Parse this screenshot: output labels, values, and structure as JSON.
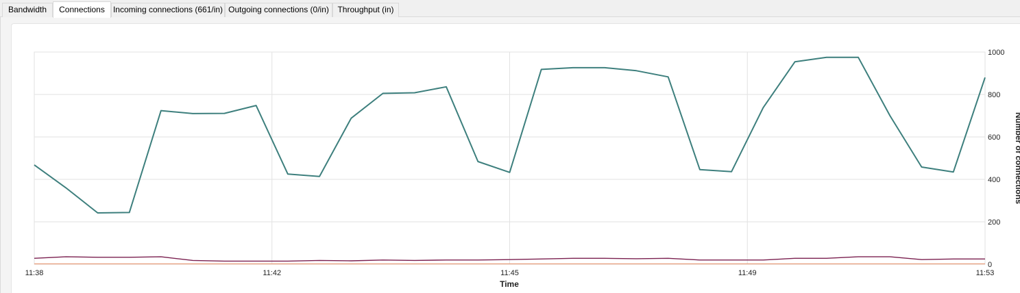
{
  "tabs": [
    {
      "label": "Bandwidth",
      "active": false
    },
    {
      "label": "Connections",
      "active": true
    },
    {
      "label": "Incoming connections (661/in)",
      "active": false
    },
    {
      "label": "Outgoing connections (0/in)",
      "active": false
    },
    {
      "label": "Throughput (in)",
      "active": false
    }
  ],
  "chart_data": {
    "type": "line",
    "title": "",
    "xlabel": "Time",
    "ylabel": "Number of connections",
    "ylim": [
      0,
      1000
    ],
    "x_tick_labels": [
      "11:38",
      "11:42",
      "11:45",
      "11:49",
      "11:53"
    ],
    "y_tick_labels": [
      "0",
      "200",
      "400",
      "600",
      "800",
      "1000"
    ],
    "grid": true,
    "series": [
      {
        "color": "#3d7f7d",
        "values": [
          468,
          360,
          242,
          244,
          724,
          710,
          711,
          748,
          425,
          414,
          688,
          805,
          808,
          836,
          484,
          433,
          918,
          926,
          926,
          912,
          883,
          446,
          436,
          738,
          954,
          975,
          975,
          700,
          458,
          435,
          880
        ]
      },
      {
        "color": "#7a1f4f",
        "values": [
          28,
          35,
          33,
          33,
          35,
          18,
          15,
          15,
          15,
          18,
          16,
          20,
          18,
          20,
          20,
          22,
          25,
          28,
          28,
          26,
          28,
          20,
          20,
          20,
          28,
          28,
          35,
          35,
          22,
          25,
          25
        ]
      },
      {
        "color": "#e8a080",
        "values": [
          2,
          2,
          2,
          2,
          2,
          2,
          2,
          2,
          2,
          2,
          2,
          2,
          2,
          2,
          2,
          2,
          2,
          2,
          2,
          2,
          2,
          2,
          2,
          2,
          2,
          2,
          2,
          2,
          2,
          2,
          2
        ]
      }
    ]
  }
}
